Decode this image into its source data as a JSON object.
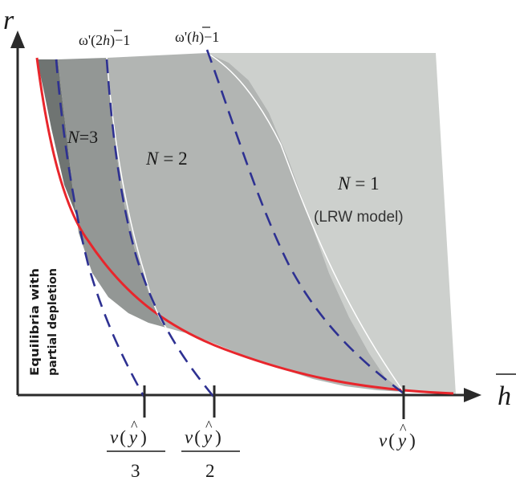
{
  "axes": {
    "y_label": "r",
    "x_label_base": "h"
  },
  "curve_labels": {
    "omega_2h": {
      "prefix": "ω'(2",
      "var": "h",
      "suffix": ")−1"
    },
    "omega_h": {
      "prefix": "ω'(",
      "var": "h",
      "suffix": ")−1"
    }
  },
  "regions": {
    "n3": {
      "var": "N",
      "eq": "=3"
    },
    "n2": {
      "var": "N",
      "eq": "= 2"
    },
    "n1": {
      "var": "N",
      "eq": "= 1",
      "sub": "(LRW model)"
    },
    "partial_line1": "Equilibria with",
    "partial_line2": "partial depletion"
  },
  "ticks": {
    "third": {
      "num_v": "v",
      "num_open": "(",
      "num_var": "y",
      "num_close": ")",
      "den": "3"
    },
    "half": {
      "num_v": "v",
      "num_open": "(",
      "num_var": "y",
      "num_close": ")",
      "den": "2"
    },
    "full": {
      "v": "v",
      "open": "(",
      "var": "y",
      "close": ")"
    }
  },
  "colors": {
    "boundary_red": "#e8262c",
    "dashed_blue": "#2e3192",
    "region_n1": "#cdd0cd",
    "region_n2": "#b2b5b3",
    "region_n3": "#939795",
    "region_dark": "#6f7472"
  }
}
